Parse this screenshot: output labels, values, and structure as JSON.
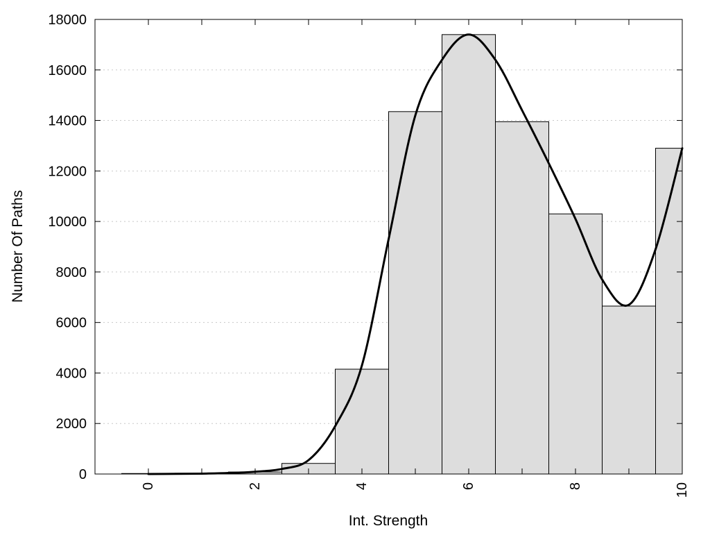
{
  "chart_data": {
    "type": "bar",
    "title": "",
    "xlabel": "Int. Strength",
    "ylabel": "Number Of Paths",
    "xlim": [
      -1,
      10
    ],
    "ylim": [
      0,
      18000
    ],
    "x_ticks": [
      0,
      2,
      4,
      6,
      8,
      10
    ],
    "y_ticks": [
      0,
      2000,
      4000,
      6000,
      8000,
      10000,
      12000,
      14000,
      16000,
      18000
    ],
    "grid": "horizontal dotted",
    "bars": {
      "x": [
        0,
        1,
        2,
        3,
        4,
        5,
        6,
        7,
        8,
        9,
        10
      ],
      "values": [
        20,
        30,
        80,
        420,
        4150,
        14350,
        17400,
        13950,
        10300,
        6650,
        12900
      ]
    },
    "curve": {
      "type": "line",
      "x": [
        0,
        0.5,
        1,
        1.5,
        2,
        2.5,
        3,
        3.5,
        4,
        4.5,
        5,
        5.5,
        6,
        6.5,
        7,
        7.5,
        8,
        8.5,
        9,
        9.5,
        10
      ],
      "values": [
        0,
        5,
        15,
        40,
        90,
        200,
        550,
        1900,
        4300,
        9300,
        14200,
        16400,
        17400,
        16400,
        14400,
        12300,
        10100,
        7700,
        6700,
        8900,
        12900
      ]
    },
    "colors": {
      "bar_fill": "#dddddd",
      "bar_stroke": "#000000",
      "curve": "#000000"
    }
  }
}
